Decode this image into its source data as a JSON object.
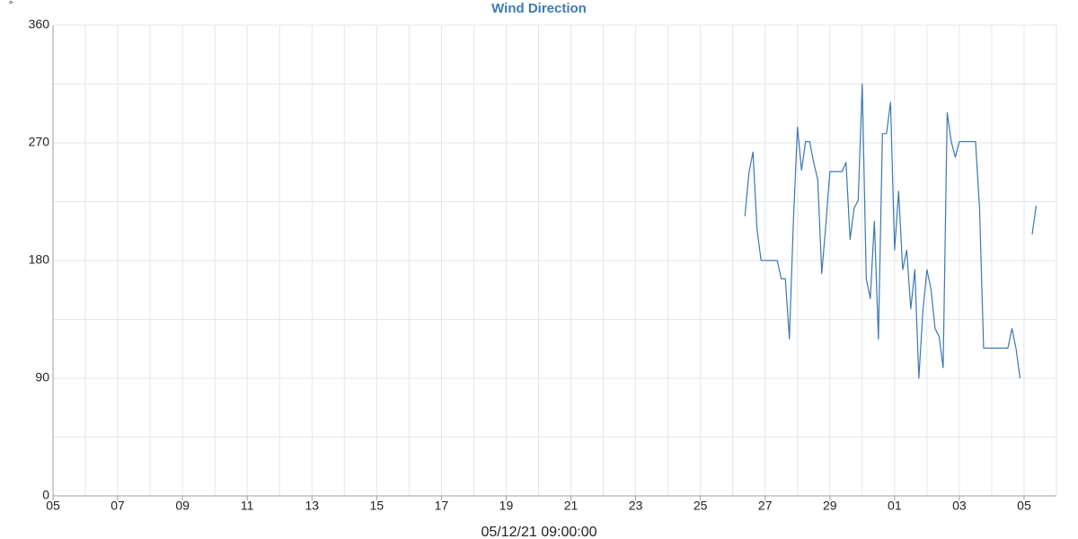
{
  "chart_data": {
    "type": "line",
    "title": "Wind Direction",
    "y_label": "°",
    "x_label": "05/12/21 09:00:00",
    "xlim": [
      0,
      31
    ],
    "xticks": [
      {
        "value": 0,
        "label": "05"
      },
      {
        "value": 2,
        "label": "07"
      },
      {
        "value": 4,
        "label": "09"
      },
      {
        "value": 6,
        "label": "11"
      },
      {
        "value": 8,
        "label": "13"
      },
      {
        "value": 10,
        "label": "15"
      },
      {
        "value": 12,
        "label": "17"
      },
      {
        "value": 14,
        "label": "19"
      },
      {
        "value": 16,
        "label": "21"
      },
      {
        "value": 18,
        "label": "23"
      },
      {
        "value": 20,
        "label": "25"
      },
      {
        "value": 22,
        "label": "27"
      },
      {
        "value": 24,
        "label": "29"
      },
      {
        "value": 26,
        "label": "01"
      },
      {
        "value": 28,
        "label": "03"
      },
      {
        "value": 30,
        "label": "05"
      }
    ],
    "minor_xticks": [
      1,
      3,
      5,
      7,
      9,
      11,
      13,
      15,
      17,
      19,
      21,
      23,
      25,
      27,
      29,
      31
    ],
    "ylim": [
      0,
      360
    ],
    "yticks": [
      0,
      90,
      180,
      270,
      360
    ],
    "minor_yticks": [
      45,
      135,
      225,
      315
    ],
    "grid": true,
    "x": [
      21.375,
      21.5,
      21.625,
      21.75,
      21.875,
      22,
      22.125,
      22.25,
      22.375,
      22.5,
      22.625,
      22.75,
      22.875,
      23,
      23.125,
      23.25,
      23.375,
      23.5,
      23.625,
      23.75,
      23.875,
      24,
      24.125,
      24.25,
      24.375,
      24.5,
      24.625,
      24.75,
      24.875,
      25,
      25.125,
      25.25,
      25.375,
      25.5,
      25.625,
      25.75,
      25.875,
      26,
      26.125,
      26.25,
      26.375,
      26.5,
      26.625,
      26.75,
      26.875,
      27,
      27.125,
      27.25,
      27.375,
      27.5,
      27.625,
      27.75,
      27.875,
      28,
      28.125,
      28.25,
      28.375,
      28.5,
      28.625,
      28.75,
      28.875,
      29,
      29.125,
      29.25,
      29.375,
      29.5,
      29.625,
      29.75,
      29.875,
      30,
      30.25,
      30.375
    ],
    "series": [
      {
        "color": "#3a78b3",
        "values": [
          214,
          247,
          263,
          204,
          180,
          180,
          180,
          180,
          180,
          166,
          166,
          120,
          211,
          282,
          249,
          271,
          271,
          255,
          242,
          170,
          207,
          248,
          248,
          248,
          248,
          255,
          196,
          220,
          226,
          315,
          166,
          151,
          210,
          120,
          277,
          277,
          301,
          188,
          233,
          173,
          188,
          143,
          173,
          90,
          142,
          173,
          158,
          128,
          122,
          98,
          293,
          271,
          259,
          271,
          271,
          271,
          271,
          271,
          220,
          113,
          113,
          113,
          113,
          113,
          113,
          113,
          128,
          113,
          90,
          null,
          200,
          222
        ]
      }
    ]
  }
}
